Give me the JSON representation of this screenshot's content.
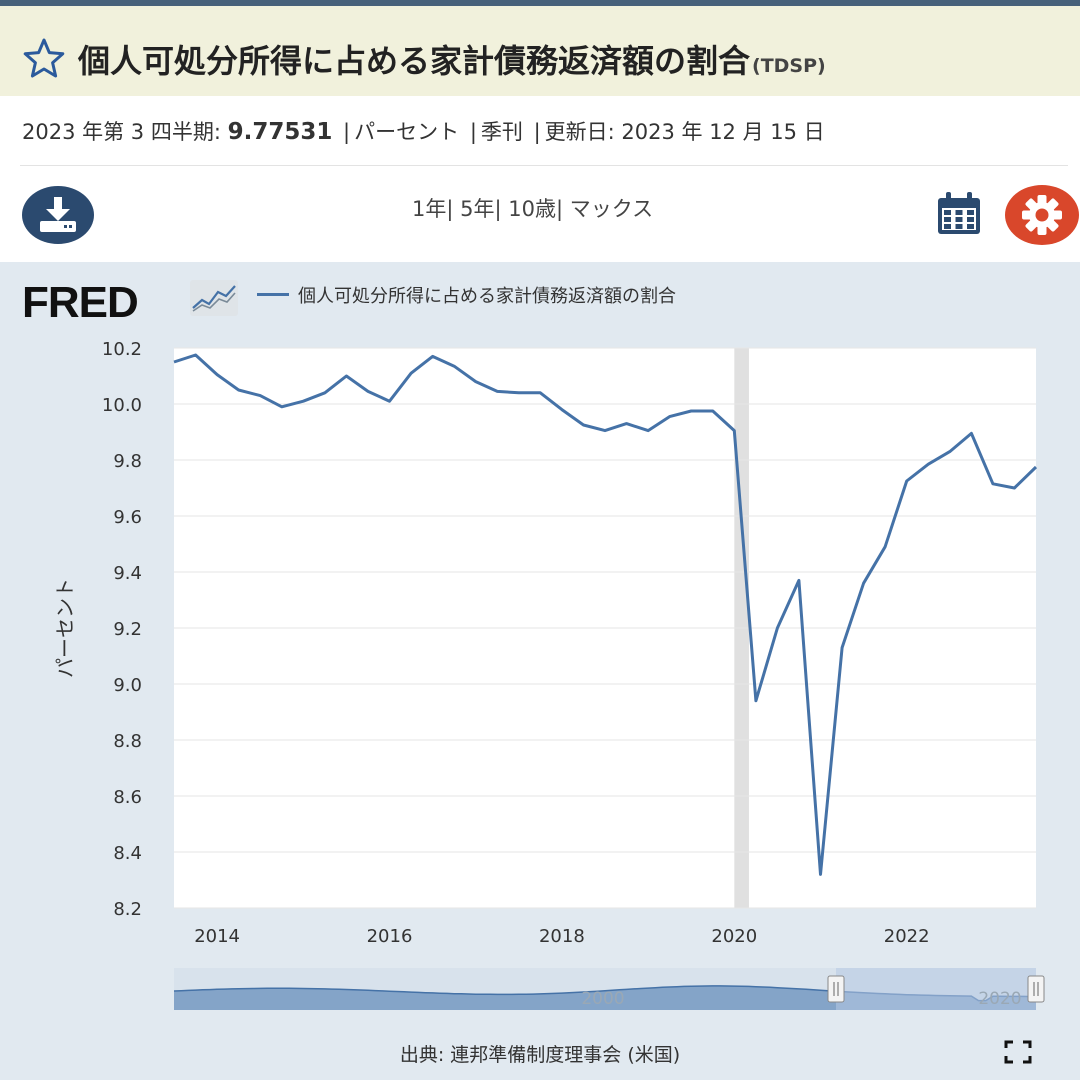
{
  "header": {
    "title": "個人可処分所得に占める家計債務返済額の割合",
    "series_code": "(TDSP)"
  },
  "meta": {
    "period": "2023 年第 3 四半期:",
    "value": "9.77531",
    "sep": "|",
    "units": "パーセント",
    "frequency": "季刊",
    "updated": "更新日: 2023 年 12 月 15 日"
  },
  "toolbar": {
    "ranges": [
      "1年",
      "5年",
      "10歳",
      "マックス"
    ],
    "range_sep": "|"
  },
  "legend": {
    "logo": "FRED",
    "series_label": "個人可処分所得に占める家計債務返済額の割合"
  },
  "source": "出典: 連邦準備制度理事会 (米国)",
  "colors": {
    "line": "#4572a7",
    "recession": "#e0e0e0",
    "accent_blue": "#2b4a6f",
    "accent_red": "#d9472b",
    "title_bg": "#f1f1dc",
    "panel_bg": "#e1e9f0"
  },
  "icons": [
    "star-icon",
    "download-icon",
    "calendar-icon",
    "gear-icon",
    "fullscreen-icon"
  ],
  "chart_data": {
    "type": "line",
    "xlabel": "",
    "ylabel": "パーセント",
    "ylim": [
      8.2,
      10.2
    ],
    "yticks": [
      10.2,
      10.0,
      9.8,
      9.6,
      9.4,
      9.2,
      9.0,
      8.8,
      8.6,
      8.4,
      8.2
    ],
    "xlim": [
      2013.5,
      2023.5
    ],
    "xticks": [
      2014,
      2016,
      2018,
      2020,
      2022
    ],
    "recession": [
      2020.0,
      2020.17
    ],
    "grid": true,
    "series": [
      {
        "name": "個人可処分所得に占める家計債務返済額の割合",
        "x": [
          2013.5,
          2013.75,
          2014.0,
          2014.25,
          2014.5,
          2014.75,
          2015.0,
          2015.25,
          2015.5,
          2015.75,
          2016.0,
          2016.25,
          2016.5,
          2016.75,
          2017.0,
          2017.25,
          2017.5,
          2017.75,
          2018.0,
          2018.25,
          2018.5,
          2018.75,
          2019.0,
          2019.25,
          2019.5,
          2019.75,
          2020.0,
          2020.25,
          2020.5,
          2020.75,
          2021.0,
          2021.25,
          2021.5,
          2021.75,
          2022.0,
          2022.25,
          2022.5,
          2022.75,
          2023.0,
          2023.25,
          2023.5
        ],
        "y": [
          10.15,
          10.175,
          10.105,
          10.05,
          10.03,
          9.99,
          10.01,
          10.04,
          10.1,
          10.045,
          10.01,
          10.11,
          10.17,
          10.135,
          10.08,
          10.045,
          10.04,
          10.04,
          9.98,
          9.925,
          9.905,
          9.93,
          9.905,
          9.955,
          9.975,
          9.975,
          9.905,
          8.94,
          9.2,
          9.37,
          8.32,
          9.13,
          9.36,
          9.49,
          9.725,
          9.785,
          9.83,
          9.895,
          9.715,
          9.7,
          9.775
        ]
      }
    ],
    "navigator": {
      "xlabels": [
        "2000",
        "2020"
      ]
    }
  }
}
